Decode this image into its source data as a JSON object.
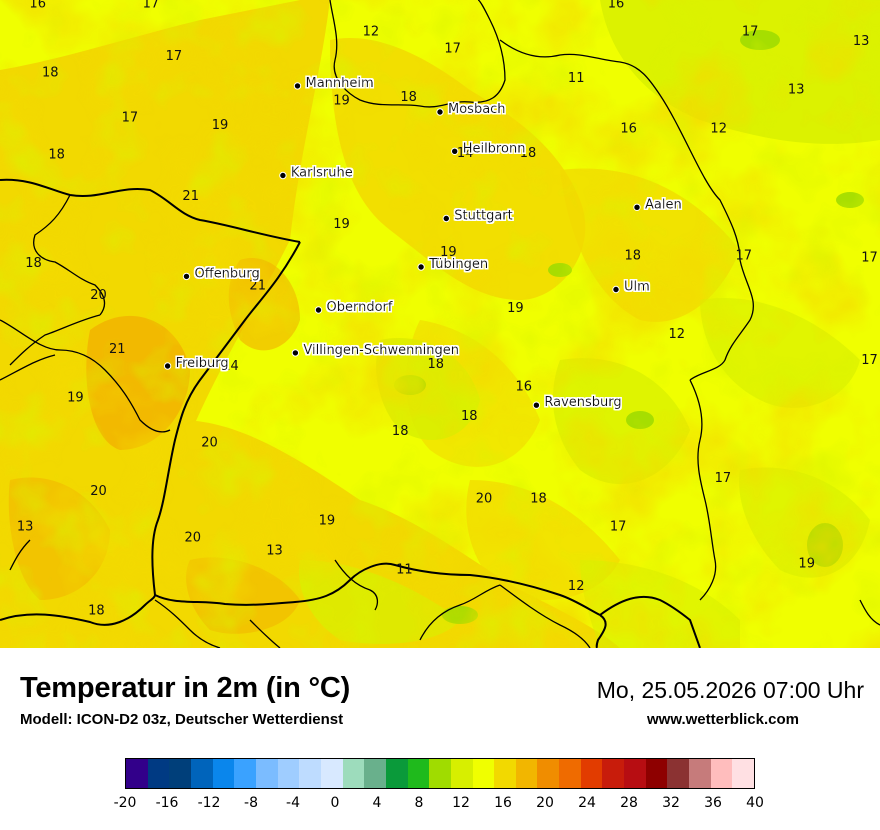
{
  "title": "Temperatur in 2m (in °C)",
  "subtitle": "Modell: ICON-D2 03z, Deutscher Wetterdienst",
  "datetime": "Mo, 25.05.2026 07:00 Uhr",
  "website": "www.wetterblick.com",
  "cities": [
    {
      "name": "Mannheim",
      "lon": 8.47,
      "lat": 49.49
    },
    {
      "name": "Mosbach",
      "lon": 9.15,
      "lat": 49.35
    },
    {
      "name": "Heilbronn",
      "lon": 9.22,
      "lat": 49.14
    },
    {
      "name": "Karlsruhe",
      "lon": 8.4,
      "lat": 49.01
    },
    {
      "name": "Stuttgart",
      "lon": 9.18,
      "lat": 48.78
    },
    {
      "name": "Aalen",
      "lon": 10.09,
      "lat": 48.84
    },
    {
      "name": "Tübingen",
      "lon": 9.06,
      "lat": 48.52
    },
    {
      "name": "Offenburg",
      "lon": 7.94,
      "lat": 48.47
    },
    {
      "name": "Ulm",
      "lon": 9.99,
      "lat": 48.4
    },
    {
      "name": "Oberndorf",
      "lon": 8.57,
      "lat": 48.29
    },
    {
      "name": "Villingen-Schwenningen",
      "lon": 8.46,
      "lat": 48.06
    },
    {
      "name": "Freiburg",
      "lon": 7.85,
      "lat": 47.99
    },
    {
      "name": "Ravensburg",
      "lon": 9.61,
      "lat": 47.78
    }
  ],
  "temperature_values": [
    {
      "v": "16",
      "lon": 7.23,
      "lat": 49.91
    },
    {
      "v": "17",
      "lon": 7.77,
      "lat": 49.91
    },
    {
      "v": "16",
      "lon": 9.99,
      "lat": 49.91
    },
    {
      "v": "12",
      "lon": 8.82,
      "lat": 49.76
    },
    {
      "v": "17",
      "lon": 10.63,
      "lat": 49.76
    },
    {
      "v": "13",
      "lon": 11.16,
      "lat": 49.71
    },
    {
      "v": "17",
      "lon": 9.21,
      "lat": 49.67
    },
    {
      "v": "17",
      "lon": 7.88,
      "lat": 49.63
    },
    {
      "v": "18",
      "lon": 7.29,
      "lat": 49.54
    },
    {
      "v": "11",
      "lon": 9.8,
      "lat": 49.51
    },
    {
      "v": "13",
      "lon": 10.85,
      "lat": 49.45
    },
    {
      "v": "19",
      "lon": 8.68,
      "lat": 49.39
    },
    {
      "v": "18",
      "lon": 9.0,
      "lat": 49.41
    },
    {
      "v": "17",
      "lon": 7.67,
      "lat": 49.3
    },
    {
      "v": "19",
      "lon": 8.1,
      "lat": 49.26
    },
    {
      "v": "16",
      "lon": 10.05,
      "lat": 49.24
    },
    {
      "v": "12",
      "lon": 10.48,
      "lat": 49.24
    },
    {
      "v": "18",
      "lon": 7.32,
      "lat": 49.1
    },
    {
      "v": "14",
      "lon": 9.27,
      "lat": 49.11
    },
    {
      "v": "18",
      "lon": 9.57,
      "lat": 49.11
    },
    {
      "v": "21",
      "lon": 7.96,
      "lat": 48.88
    },
    {
      "v": "19",
      "lon": 8.68,
      "lat": 48.73
    },
    {
      "v": "19",
      "lon": 9.19,
      "lat": 48.58
    },
    {
      "v": "18",
      "lon": 10.07,
      "lat": 48.56
    },
    {
      "v": "17",
      "lon": 10.6,
      "lat": 48.56
    },
    {
      "v": "17",
      "lon": 11.2,
      "lat": 48.55
    },
    {
      "v": "18",
      "lon": 7.21,
      "lat": 48.52
    },
    {
      "v": "21",
      "lon": 8.28,
      "lat": 48.4
    },
    {
      "v": "20",
      "lon": 7.52,
      "lat": 48.35
    },
    {
      "v": "19",
      "lon": 9.51,
      "lat": 48.28
    },
    {
      "v": "12",
      "lon": 10.28,
      "lat": 48.14
    },
    {
      "v": "21",
      "lon": 7.61,
      "lat": 48.06
    },
    {
      "v": "17",
      "lon": 11.2,
      "lat": 48.0
    },
    {
      "v": "14",
      "lon": 8.15,
      "lat": 47.97
    },
    {
      "v": "18",
      "lon": 9.13,
      "lat": 47.98
    },
    {
      "v": "16",
      "lon": 9.55,
      "lat": 47.86
    },
    {
      "v": "19",
      "lon": 7.41,
      "lat": 47.8
    },
    {
      "v": "18",
      "lon": 9.29,
      "lat": 47.7
    },
    {
      "v": "18",
      "lon": 8.96,
      "lat": 47.62
    },
    {
      "v": "20",
      "lon": 8.05,
      "lat": 47.56
    },
    {
      "v": "17",
      "lon": 10.5,
      "lat": 47.37
    },
    {
      "v": "20",
      "lon": 7.52,
      "lat": 47.3
    },
    {
      "v": "20",
      "lon": 9.36,
      "lat": 47.26
    },
    {
      "v": "18",
      "lon": 9.62,
      "lat": 47.26
    },
    {
      "v": "13",
      "lon": 7.17,
      "lat": 47.11
    },
    {
      "v": "19",
      "lon": 8.61,
      "lat": 47.14
    },
    {
      "v": "17",
      "lon": 10.0,
      "lat": 47.11
    },
    {
      "v": "20",
      "lon": 7.97,
      "lat": 47.05
    },
    {
      "v": "13",
      "lon": 8.36,
      "lat": 46.98
    },
    {
      "v": "11",
      "lon": 8.98,
      "lat": 46.88
    },
    {
      "v": "19",
      "lon": 10.9,
      "lat": 46.91
    },
    {
      "v": "12",
      "lon": 9.8,
      "lat": 46.79
    },
    {
      "v": "18",
      "lon": 7.51,
      "lat": 46.66
    }
  ],
  "legend": {
    "colors": [
      "#32008a",
      "#003a83",
      "#003f7a",
      "#0064bb",
      "#0a86ec",
      "#3aa2ff",
      "#7bbcff",
      "#9fcdff",
      "#bedcff",
      "#d8e9ff",
      "#9ddcbc",
      "#69b08c",
      "#0a9a3a",
      "#1fba1c",
      "#a0dc00",
      "#d7ef00",
      "#f0ff00",
      "#f2d900",
      "#f2b600",
      "#f08d00",
      "#ef6b00",
      "#e23c00",
      "#c81c0b",
      "#b70d12",
      "#8e0000",
      "#8b3232",
      "#c67b7b",
      "#ffbdbd",
      "#ffe0e3"
    ],
    "tick_labels": [
      "-20",
      "-16",
      "-12",
      "-8",
      "-4",
      "0",
      "4",
      "8",
      "12",
      "16",
      "20",
      "24",
      "28",
      "32",
      "36",
      "40"
    ]
  }
}
